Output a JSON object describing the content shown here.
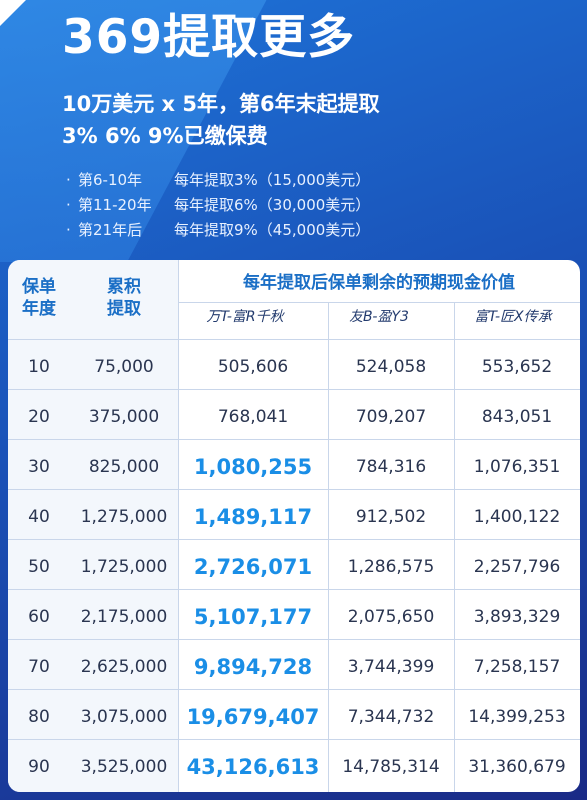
{
  "title": "369提取更多",
  "subtitle_line1": "10万美元 x 5年，第6年末起提取",
  "subtitle_line2": "3% 6% 9%已缴保费",
  "bullets": [
    {
      "period": "第6-10年",
      "desc": "每年提取3%（15,000美元）"
    },
    {
      "period": "第11-20年",
      "desc": "每年提取6%（30,000美元）"
    },
    {
      "period": "第21年后",
      "desc": "每年提取9%（45,000美元）"
    }
  ],
  "table": {
    "header_year": "保单\n年度",
    "header_cumulative": "累积\n提取",
    "header_group": "每年提取后保单剩余的预期现金价值",
    "products": [
      "万T-富R千秋",
      "友B-盈Y3",
      "富T-匠X传承"
    ],
    "rows": [
      {
        "year": "10",
        "cumulative": "75,000",
        "a": "505,606",
        "b": "524,058",
        "c": "553,652",
        "highlight": false
      },
      {
        "year": "20",
        "cumulative": "375,000",
        "a": "768,041",
        "b": "709,207",
        "c": "843,051",
        "highlight": false
      },
      {
        "year": "30",
        "cumulative": "825,000",
        "a": "1,080,255",
        "b": "784,316",
        "c": "1,076,351",
        "highlight": true
      },
      {
        "year": "40",
        "cumulative": "1,275,000",
        "a": "1,489,117",
        "b": "912,502",
        "c": "1,400,122",
        "highlight": true
      },
      {
        "year": "50",
        "cumulative": "1,725,000",
        "a": "2,726,071",
        "b": "1,286,575",
        "c": "2,257,796",
        "highlight": true
      },
      {
        "year": "60",
        "cumulative": "2,175,000",
        "a": "5,107,177",
        "b": "2,075,650",
        "c": "3,893,329",
        "highlight": true
      },
      {
        "year": "70",
        "cumulative": "2,625,000",
        "a": "9,894,728",
        "b": "3,744,399",
        "c": "7,258,157",
        "highlight": true
      },
      {
        "year": "80",
        "cumulative": "3,075,000",
        "a": "19,679,407",
        "b": "7,344,732",
        "c": "14,399,253",
        "highlight": true
      },
      {
        "year": "90",
        "cumulative": "3,525,000",
        "a": "43,126,613",
        "b": "14,785,314",
        "c": "31,360,679",
        "highlight": true
      }
    ]
  },
  "colors": {
    "accent": "#1a8ee6",
    "header_text": "#1b6fc6",
    "background": "#1a52b8"
  }
}
